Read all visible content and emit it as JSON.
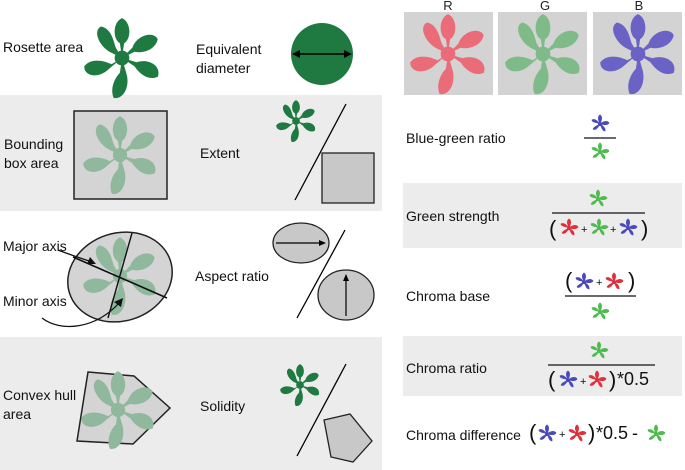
{
  "left_rows": [
    {
      "label": "Rosette area",
      "metric": "Equivalent\ndiameter"
    },
    {
      "label": "Bounding\nbox area",
      "metric": "Extent"
    },
    {
      "label": "Major axis",
      "label2": "Minor axis",
      "metric": "Aspect ratio"
    },
    {
      "label": "Convex hull\narea",
      "metric": "Solidity"
    }
  ],
  "rgb_channels": [
    "R",
    "G",
    "B"
  ],
  "color_metrics": [
    {
      "label": "Blue-green ratio"
    },
    {
      "label": "Green strength"
    },
    {
      "label": "Chroma base"
    },
    {
      "label": "Chroma ratio"
    },
    {
      "label": "Chroma difference"
    }
  ],
  "formula_text": {
    "plus": "+",
    "lparen": "(",
    "rparen": ")",
    "times_half": "*0.5",
    "minus": "-"
  },
  "colors": {
    "rosette_dark": "#1f7a41",
    "rosette_light": "#8fb89c",
    "band": "#ececec",
    "shape_grey": "#d2d2d2",
    "plant_red": "#e0303e",
    "plant_green": "#4dbb4d",
    "plant_blue": "#4a4ab8",
    "tile_r": "#e8707a",
    "tile_g": "#88c08e",
    "tile_b": "#6f66c8"
  },
  "icons": [
    "rosette-icon",
    "circle-diameter-icon",
    "bounding-box-icon",
    "ellipse-icon",
    "convex-hull-icon"
  ]
}
